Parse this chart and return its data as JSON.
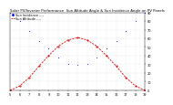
{
  "title": "Solar PV/Inverter Performance  Sun Altitude Angle & Sun Incidence Angle on PV Panels",
  "legend_blue": "Sun Incidence ----",
  "legend_red": "Sun Altitude ----",
  "x_hours": [
    5,
    6,
    7,
    8,
    9,
    10,
    11,
    12,
    13,
    14,
    15,
    16,
    17,
    18,
    19
  ],
  "sun_altitude": [
    0,
    5,
    15,
    28,
    40,
    51,
    58,
    61,
    58,
    51,
    40,
    28,
    15,
    5,
    0
  ],
  "sun_incidence": [
    90,
    80,
    68,
    57,
    48,
    38,
    31,
    29,
    31,
    38,
    48,
    57,
    68,
    80,
    90
  ],
  "blue_color": "#0000ee",
  "red_color": "#dd0000",
  "bg_color": "#ffffff",
  "grid_color": "#bbbbbb",
  "ylim": [
    0,
    90
  ],
  "xlim": [
    5,
    19
  ],
  "yticks": [
    0,
    10,
    20,
    30,
    40,
    50,
    60,
    70,
    80,
    90
  ],
  "xticks": [
    5,
    6,
    7,
    8,
    9,
    10,
    11,
    12,
    13,
    14,
    15,
    16,
    17,
    18,
    19
  ],
  "title_fontsize": 2.8,
  "legend_fontsize": 2.5,
  "tick_fontsize": 2.5
}
